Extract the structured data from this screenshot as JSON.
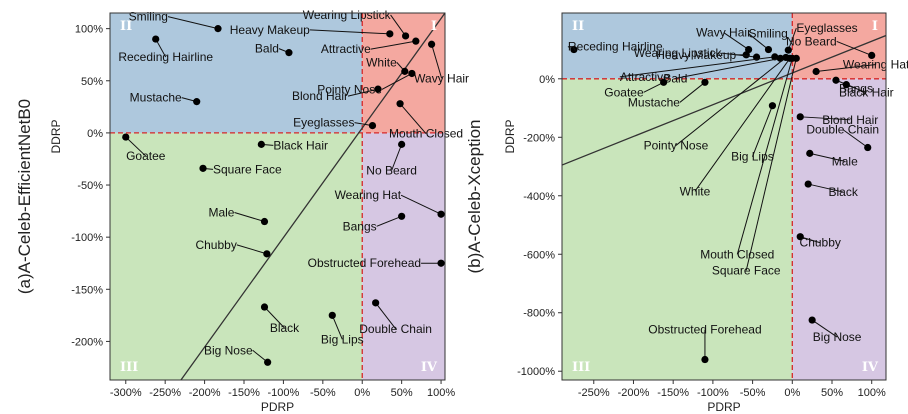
{
  "chart_data": [
    {
      "type": "scatter",
      "panel_label": "(a)A-Celeb-EfficientNetB0",
      "xlabel": "PDRP",
      "ylabel": "DDRP",
      "xlim": [
        -320,
        105
      ],
      "ylim": [
        -237,
        115
      ],
      "xticks": [
        -300,
        -250,
        -200,
        -150,
        -100,
        -50,
        0,
        50,
        100
      ],
      "xtick_labels": [
        "-300%",
        "-250%",
        "-200%",
        "-150%",
        "-100%",
        "-50%",
        "0%",
        "50%",
        "100%"
      ],
      "yticks": [
        100,
        50,
        0,
        -50,
        -100,
        -150,
        -200
      ],
      "ytick_labels": [
        "100%",
        "50%",
        "0%",
        "-50%",
        "-100%",
        "-150%",
        "-200%"
      ],
      "quadrants": [
        "II",
        "I",
        "III",
        "IV"
      ],
      "quadrant_colors": {
        "I": "#f4a8a0",
        "II": "#aec8dd",
        "III": "#c9e5bb",
        "IV": "#d6c7e3"
      },
      "fit_line": [
        [
          -230,
          -237
        ],
        [
          105,
          115
        ]
      ],
      "points": [
        {
          "label": "Smiling",
          "x": -183,
          "y": 100
        },
        {
          "label": "Receding Hairline",
          "x": -262,
          "y": 90
        },
        {
          "label": "Bald",
          "x": -93,
          "y": 77
        },
        {
          "label": "Heavy Makeup",
          "x": 35,
          "y": 95
        },
        {
          "label": "Wearing Lipstick",
          "x": 55,
          "y": 93
        },
        {
          "label": "Attractive",
          "x": 68,
          "y": 88
        },
        {
          "label": "Wavy Hair",
          "x": 88,
          "y": 85
        },
        {
          "label": "White",
          "x": 54,
          "y": 59
        },
        {
          "label": "Pointy Nose",
          "x": 63,
          "y": 57
        },
        {
          "label": "Blond Hair",
          "x": 20,
          "y": 42
        },
        {
          "label": "Mouth Closed",
          "x": 48,
          "y": 28
        },
        {
          "label": "Mustache",
          "x": -210,
          "y": 30
        },
        {
          "label": "Eyeglasses",
          "x": 13,
          "y": 7
        },
        {
          "label": "Goatee",
          "x": -300,
          "y": -4
        },
        {
          "label": "Black Hair",
          "x": -128,
          "y": -11
        },
        {
          "label": "No Beard",
          "x": 50,
          "y": -11
        },
        {
          "label": "Square Face",
          "x": -202,
          "y": -34
        },
        {
          "label": "Wearing Hat",
          "x": 100,
          "y": -78
        },
        {
          "label": "Bangs",
          "x": 50,
          "y": -80
        },
        {
          "label": "Male",
          "x": -124,
          "y": -85
        },
        {
          "label": "Chubby",
          "x": -121,
          "y": -116
        },
        {
          "label": "Obstructed Forehead",
          "x": 100,
          "y": -125
        },
        {
          "label": "Double Chain",
          "x": 17,
          "y": -163
        },
        {
          "label": "Black",
          "x": -124,
          "y": -167
        },
        {
          "label": "Big Lips",
          "x": -38,
          "y": -175
        },
        {
          "label": "Big Nose",
          "x": -120,
          "y": -220
        }
      ]
    },
    {
      "type": "scatter",
      "panel_label": "(b)A-Celeb-Xception",
      "xlabel": "PDRP",
      "ylabel": "DDRP",
      "xlim": [
        -290,
        118
      ],
      "ylim": [
        -1030,
        225
      ],
      "xticks": [
        -250,
        -200,
        -150,
        -100,
        -50,
        0,
        50,
        100
      ],
      "xtick_labels": [
        "-250%",
        "-200%",
        "-150%",
        "-100%",
        "-50%",
        "0%",
        "50%",
        "100%"
      ],
      "yticks": [
        0,
        -200,
        -400,
        -600,
        -800,
        -1000
      ],
      "ytick_labels": [
        "0%",
        "-200%",
        "-400%",
        "-600%",
        "-800%",
        "-1000%"
      ],
      "quadrants": [
        "II",
        "I",
        "III",
        "IV"
      ],
      "quadrant_colors": {
        "I": "#f4a8a0",
        "II": "#aec8dd",
        "III": "#c9e5bb",
        "IV": "#d6c7e3"
      },
      "fit_line": [
        [
          -290,
          -295
        ],
        [
          118,
          148
        ]
      ],
      "points": [
        {
          "label": "Receding Hairline",
          "x": -275,
          "y": 100
        },
        {
          "label": "Wavy Hair",
          "x": -55,
          "y": 100
        },
        {
          "label": "Smiling",
          "x": -30,
          "y": 100
        },
        {
          "label": "Eyeglasses",
          "x": -5,
          "y": 98
        },
        {
          "label": "Heavy Makeup",
          "x": -58,
          "y": 82
        },
        {
          "label": "No Beard",
          "x": 100,
          "y": 80
        },
        {
          "label": "Wearing Lipstick",
          "x": -45,
          "y": 74
        },
        {
          "label": "Attractive",
          "x": -22,
          "y": 75
        },
        {
          "label": "Bald",
          "x": -15,
          "y": 70
        },
        {
          "label": "Pointy Nose",
          "x": -8,
          "y": 73
        },
        {
          "label": "White",
          "x": -3,
          "y": 70
        },
        {
          "label": "Mouth Closed",
          "x": 0,
          "y": 70
        },
        {
          "label": "Square Face",
          "x": 5,
          "y": 70
        },
        {
          "label": "Wearing Hat",
          "x": 30,
          "y": 25
        },
        {
          "label": "Goatee",
          "x": -162,
          "y": -12
        },
        {
          "label": "Mustache",
          "x": -110,
          "y": -12
        },
        {
          "label": "Bangs",
          "x": 55,
          "y": -5
        },
        {
          "label": "Black Hair",
          "x": 68,
          "y": -20
        },
        {
          "label": "Big Lips",
          "x": -25,
          "y": -92
        },
        {
          "label": "Blond Hair",
          "x": 10,
          "y": -130
        },
        {
          "label": "Double Chain",
          "x": 95,
          "y": -235
        },
        {
          "label": "Male",
          "x": 22,
          "y": -255
        },
        {
          "label": "Black",
          "x": 20,
          "y": -360
        },
        {
          "label": "Chubby",
          "x": 10,
          "y": -540
        },
        {
          "label": "Big Nose",
          "x": 25,
          "y": -825
        },
        {
          "label": "Obstructed Forehead",
          "x": -110,
          "y": -960
        }
      ]
    }
  ]
}
